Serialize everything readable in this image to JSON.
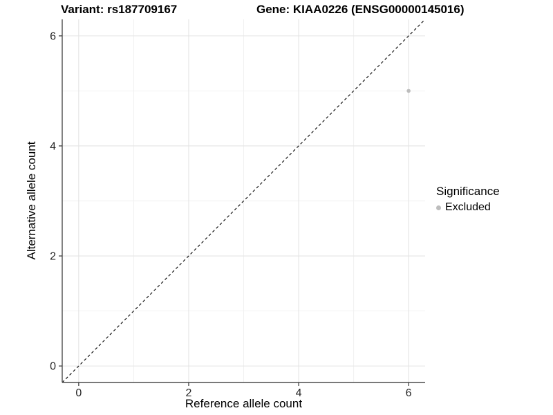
{
  "chart_data": {
    "type": "scatter",
    "title_left": "Variant: rs187709167",
    "title_right": "Gene: KIAA0226 (ENSG00000145016)",
    "xlabel": "Reference allele count",
    "ylabel": "Alternative allele count",
    "xlim": [
      -0.3,
      6.3
    ],
    "ylim": [
      -0.3,
      6.3
    ],
    "x_major_ticks": [
      0,
      2,
      4,
      6
    ],
    "y_major_ticks": [
      0,
      2,
      4,
      6
    ],
    "x_minor_ticks": [
      1,
      3,
      5
    ],
    "y_minor_ticks": [
      1,
      3,
      5
    ],
    "grid": true,
    "series": [
      {
        "name": "Excluded",
        "color": "#bcbcbc",
        "point_radius": 2.8,
        "points": [
          {
            "x": 6,
            "y": 5
          }
        ]
      }
    ],
    "reference_line": {
      "type": "identity",
      "slope": 1,
      "intercept": 0,
      "style": "dashed",
      "color": "#000000"
    },
    "legend": {
      "position": "right",
      "title": "Significance",
      "items": [
        {
          "label": "Excluded",
          "color": "#bdbdbd"
        }
      ]
    },
    "colors": {
      "axis_line": "#4d4d4d",
      "tick_mark": "#333333",
      "grid_major": "#e4e4e4",
      "grid_minor": "#f0f0f0",
      "panel_background": "#ffffff"
    }
  }
}
